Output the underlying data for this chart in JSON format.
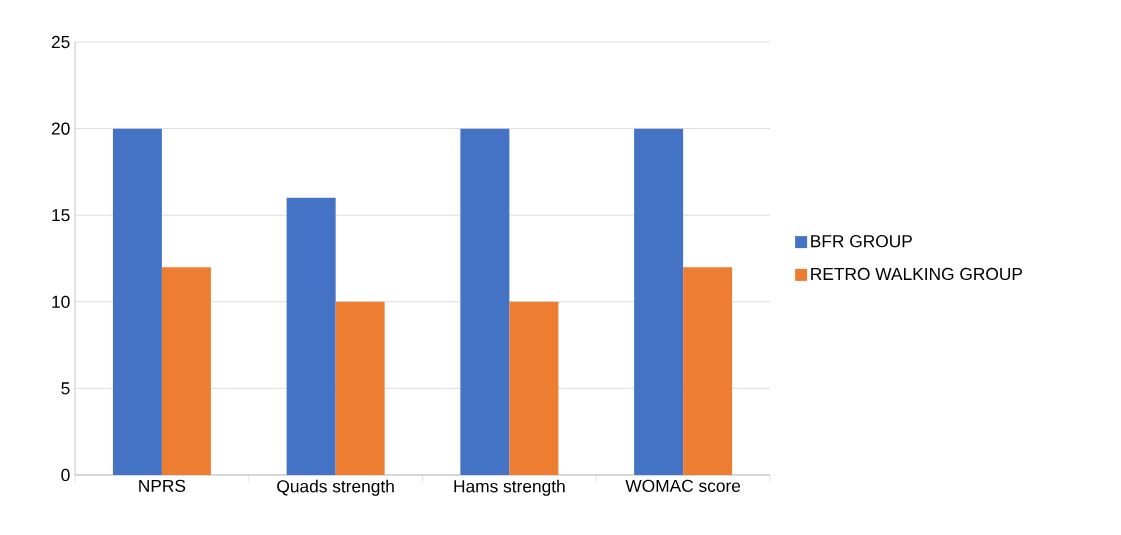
{
  "chart_data": {
    "type": "bar",
    "categories": [
      "NPRS",
      "Quads strength",
      "Hams strength",
      "WOMAC score"
    ],
    "series": [
      {
        "name": "BFR GROUP",
        "color": "#4472c4",
        "values": [
          20,
          16,
          20,
          20
        ]
      },
      {
        "name": "RETRO WALKING GROUP",
        "color": "#ed7d31",
        "values": [
          12,
          10,
          10,
          12
        ]
      }
    ],
    "ylim": [
      0,
      25
    ],
    "yticks": [
      0,
      5,
      10,
      15,
      20,
      25
    ],
    "grid": "y",
    "legend": "right"
  }
}
